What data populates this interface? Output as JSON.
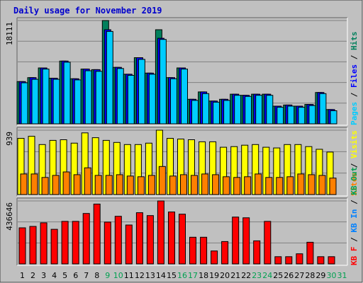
{
  "chart_data": {
    "type": "bar",
    "title": "Daily usage for November 2019",
    "categories": [
      "1",
      "2",
      "3",
      "4",
      "5",
      "6",
      "7",
      "8",
      "9",
      "10",
      "11",
      "12",
      "13",
      "14",
      "15",
      "16",
      "17",
      "18",
      "19",
      "20",
      "21",
      "22",
      "23",
      "24",
      "25",
      "26",
      "27",
      "28",
      "29",
      "30",
      "31"
    ],
    "weekend_days": [
      "9",
      "10",
      "16",
      "17",
      "23",
      "24",
      "30",
      "31"
    ],
    "panels": [
      {
        "name": "hits-files-pages",
        "ymax_label": "18111",
        "ymax": 18111,
        "legend": [
          {
            "text": "Pages",
            "color": "#00ccff"
          },
          {
            "text": " / ",
            "color": "#000000"
          },
          {
            "text": "Files",
            "color": "#0000ff"
          },
          {
            "text": " / ",
            "color": "#000000"
          },
          {
            "text": "Hits",
            "color": "#00805c"
          }
        ],
        "series": [
          {
            "name": "Hits",
            "color": "#00805c",
            "values": [
              7400,
              8100,
              9800,
              8000,
              11000,
              7900,
              9600,
              9500,
              18111,
              9900,
              8700,
              11600,
              8900,
              16500,
              8100,
              9800,
              4300,
              5600,
              4000,
              4300,
              5200,
              5000,
              5200,
              5200,
              3100,
              3300,
              3100,
              3400,
              5500,
              2500,
              0
            ]
          },
          {
            "name": "Files",
            "color": "#0000ff",
            "values": [
              7400,
              8100,
              9800,
              8000,
              11000,
              7900,
              9600,
              9500,
              16500,
              9900,
              8700,
              11600,
              8900,
              15000,
              8100,
              9800,
              4300,
              5600,
              4000,
              4300,
              5200,
              5000,
              5200,
              5200,
              3100,
              3300,
              3100,
              3400,
              5500,
              2500,
              0
            ]
          },
          {
            "name": "Pages",
            "color": "#00ccff",
            "values": [
              7200,
              7800,
              9600,
              7800,
              10800,
              7700,
              9300,
              9200,
              16200,
              9700,
              8500,
              11300,
              8700,
              14800,
              7900,
              9600,
              4100,
              5300,
              3800,
              4100,
              5000,
              4800,
              5000,
              5000,
              2900,
              3100,
              2900,
              3200,
              5300,
              2300,
              0
            ]
          }
        ]
      },
      {
        "name": "visits-sites",
        "ymax_label": "939",
        "ymax": 939,
        "legend": [
          {
            "text": "Sites",
            "color": "#ff8000"
          },
          {
            "text": " / ",
            "color": "#000000"
          },
          {
            "text": "Visits",
            "color": "#ffff00"
          }
        ],
        "series": [
          {
            "name": "Visits",
            "color": "#ffff00",
            "values": [
              820,
              850,
              730,
              790,
              800,
              750,
              900,
              830,
              790,
              760,
              730,
              730,
              750,
              939,
              820,
              810,
              800,
              770,
              770,
              690,
              700,
              720,
              730,
              690,
              680,
              730,
              730,
              700,
              660,
              620,
              0
            ]
          },
          {
            "name": "Sites",
            "color": "#ff8000",
            "values": [
              300,
              300,
              250,
              280,
              330,
              290,
              390,
              280,
              280,
              290,
              270,
              260,
              280,
              410,
              270,
              290,
              280,
              300,
              290,
              260,
              250,
              260,
              300,
              250,
              250,
              260,
              300,
              290,
              280,
              240,
              0
            ]
          }
        ]
      },
      {
        "name": "kbytes",
        "ymax_label": "436646",
        "ymax": 436646,
        "legend": [
          {
            "text": "KB F",
            "color": "#ff0000"
          },
          {
            "text": " / ",
            "color": "#000000"
          },
          {
            "text": "KB In",
            "color": "#0080ff"
          },
          {
            "text": " / ",
            "color": "#000000"
          },
          {
            "text": "KB Out",
            "color": "#00a050"
          }
        ],
        "series": [
          {
            "name": "KB F",
            "color": "#ff0000",
            "values": [
              250000,
              260000,
              285000,
              240000,
              295000,
              295000,
              350000,
              415000,
              290000,
              330000,
              270000,
              355000,
              335000,
              436646,
              360000,
              345000,
              185000,
              185000,
              90000,
              155000,
              325000,
              320000,
              160000,
              295000,
              50000,
              50000,
              70000,
              150000,
              50000,
              50000,
              0
            ]
          }
        ]
      }
    ]
  }
}
